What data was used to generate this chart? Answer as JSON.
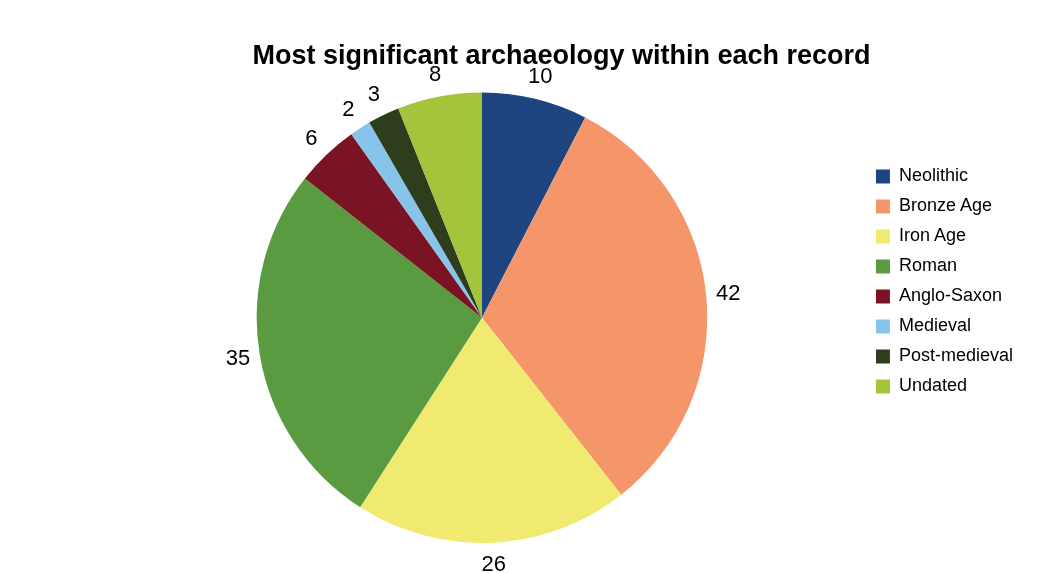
{
  "chart_data": {
    "type": "pie",
    "title": "Most significant archaeology within each record",
    "categories": [
      "Neolithic",
      "Bronze Age",
      "Iron Age",
      "Roman",
      "Anglo-Saxon",
      "Medieval",
      "Post-medieval",
      "Undated"
    ],
    "values": [
      10,
      42,
      26,
      35,
      6,
      2,
      3,
      8
    ],
    "colors": [
      "#1f4580",
      "#f4956a",
      "#f0eb70",
      "#5a9a40",
      "#7a1424",
      "#88c4ea",
      "#2e3d1c",
      "#a4c43c"
    ],
    "data_labels": true,
    "legend": "right"
  }
}
